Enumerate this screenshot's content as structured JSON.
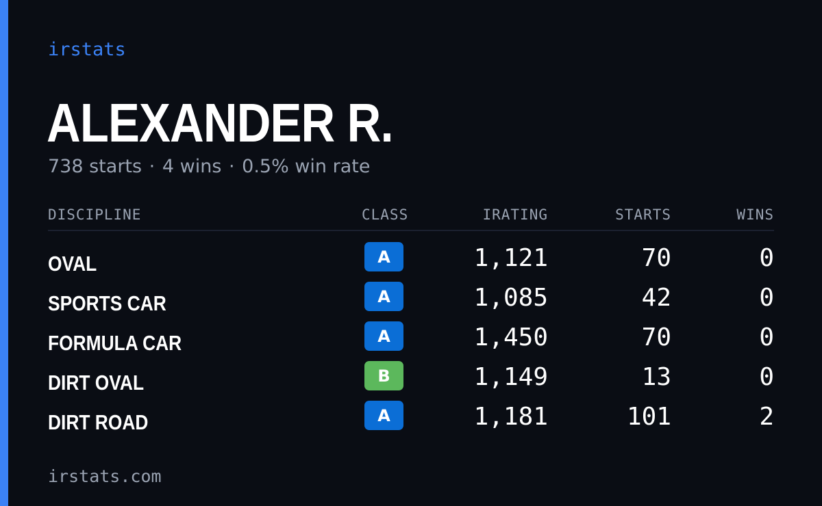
{
  "brand": "irstats",
  "driver": {
    "name": "ALEXANDER R.",
    "starts_text": "738 starts",
    "wins_text": "4 wins",
    "win_rate_text": "0.5% win rate",
    "separator": "·"
  },
  "table": {
    "headers": {
      "discipline": "DISCIPLINE",
      "class": "CLASS",
      "irating": "IRATING",
      "starts": "STARTS",
      "wins": "WINS"
    },
    "rows": [
      {
        "discipline": "OVAL",
        "class": "A",
        "irating": "1,121",
        "starts": "70",
        "wins": "0"
      },
      {
        "discipline": "SPORTS CAR",
        "class": "A",
        "irating": "1,085",
        "starts": "42",
        "wins": "0"
      },
      {
        "discipline": "FORMULA CAR",
        "class": "A",
        "irating": "1,450",
        "starts": "70",
        "wins": "0"
      },
      {
        "discipline": "DIRT OVAL",
        "class": "B",
        "irating": "1,149",
        "starts": "13",
        "wins": "0"
      },
      {
        "discipline": "DIRT ROAD",
        "class": "A",
        "irating": "1,181",
        "starts": "101",
        "wins": "2"
      }
    ]
  },
  "class_colors": {
    "A": "#0b6ed6",
    "B": "#5cb85c"
  },
  "colors": {
    "accent": "#3b82f6",
    "background": "#0a0d14",
    "muted_text": "#9aa3b2"
  },
  "footer": "irstats.com"
}
